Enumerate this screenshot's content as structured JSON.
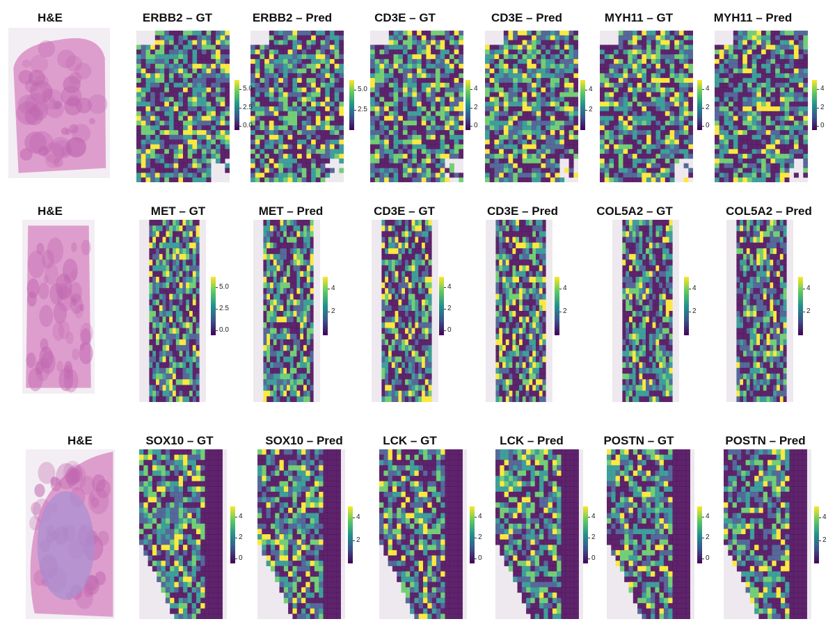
{
  "rows": [
    {
      "titles": [
        "H&E",
        "ERBB2 – GT",
        "ERBB2 – Pred",
        "CD3E – GT",
        "CD3E – Pred",
        "MYH11 – GT",
        "MYH11 – Pred"
      ],
      "colorbars": [
        {
          "ticks": [
            "5.0",
            "2.5",
            "0.0"
          ]
        },
        {
          "ticks": [
            "5.0",
            "2.5"
          ]
        },
        {
          "ticks": [
            "4",
            "2",
            "0"
          ]
        },
        {
          "ticks": [
            "4",
            "2"
          ]
        },
        {
          "ticks": [
            "4",
            "2",
            "0"
          ]
        },
        {
          "ticks": [
            "4",
            "2",
            "0"
          ]
        }
      ]
    },
    {
      "titles": [
        "H&E",
        "MET – GT",
        "MET – Pred",
        "CD3E – GT",
        "CD3E – Pred",
        "COL5A2 – GT",
        "COL5A2 – Pred"
      ],
      "colorbars": [
        {
          "ticks": [
            "5.0",
            "2.5",
            "0.0"
          ]
        },
        {
          "ticks": [
            "4",
            "2"
          ]
        },
        {
          "ticks": [
            "4",
            "2",
            "0"
          ]
        },
        {
          "ticks": [
            "4",
            "2"
          ]
        },
        {
          "ticks": [
            "4",
            "2"
          ]
        },
        {
          "ticks": [
            "4",
            "2"
          ]
        }
      ]
    },
    {
      "titles": [
        "H&E",
        "SOX10 – GT",
        "SOX10 – Pred",
        "LCK – GT",
        "LCK – Pred",
        "POSTN – GT",
        "POSTN – Pred"
      ],
      "colorbars": [
        {
          "ticks": [
            "4",
            "2",
            "0"
          ]
        },
        {
          "ticks": [
            "4",
            "2"
          ]
        },
        {
          "ticks": [
            "4",
            "2",
            "0"
          ]
        },
        {
          "ticks": [
            "4",
            "2",
            "0"
          ]
        },
        {
          "ticks": [
            "4",
            "2",
            "0"
          ]
        },
        {
          "ticks": [
            "4",
            "2"
          ]
        }
      ]
    }
  ],
  "colormap": [
    "#440154",
    "#3b528b",
    "#21918c",
    "#5ec962",
    "#fde725"
  ],
  "he_colors": {
    "tissue": "#d98fc6",
    "dense": "#c067b0",
    "background": "#f3eef3"
  }
}
